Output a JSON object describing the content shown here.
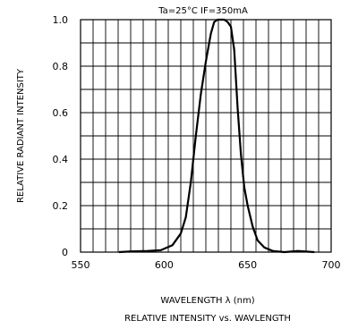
{
  "chart_data": {
    "type": "line",
    "title": "Ta=25°C   IF=350mA",
    "caption": "RELATIVE INTENSITY vs. WAVLENGTH",
    "xlabel": "WAVELENGTH λ (nm)",
    "ylabel": "RELATIVE RADIANT INTENSITY",
    "xlim": [
      550,
      700
    ],
    "ylim": [
      0,
      1.0
    ],
    "x_ticks": [
      550,
      600,
      650,
      700
    ],
    "x_tick_labels": [
      "550",
      "600",
      "650",
      "700"
    ],
    "y_ticks": [
      0,
      0.2,
      0.4,
      0.6,
      0.8,
      1.0
    ],
    "y_tick_labels": [
      "0",
      "0.2",
      "0.4",
      "0.6",
      "0.8",
      "1.0"
    ],
    "grid": true,
    "grid_x_step": 7.5,
    "grid_y_step": 0.1,
    "series": [
      {
        "x": [
          573,
          580,
          590,
          598,
          605,
          610,
          613,
          616,
          619,
          622,
          625,
          628,
          630,
          632,
          634,
          636,
          638,
          640,
          642,
          644,
          646,
          648,
          650,
          653,
          656,
          660,
          665,
          672,
          680,
          690
        ],
        "y": [
          0.0,
          0.003,
          0.005,
          0.008,
          0.03,
          0.08,
          0.15,
          0.3,
          0.5,
          0.68,
          0.82,
          0.94,
          0.99,
          1.0,
          1.0,
          1.0,
          0.99,
          0.97,
          0.87,
          0.62,
          0.42,
          0.28,
          0.2,
          0.11,
          0.05,
          0.02,
          0.005,
          0.0,
          0.005,
          0.0
        ]
      }
    ]
  }
}
